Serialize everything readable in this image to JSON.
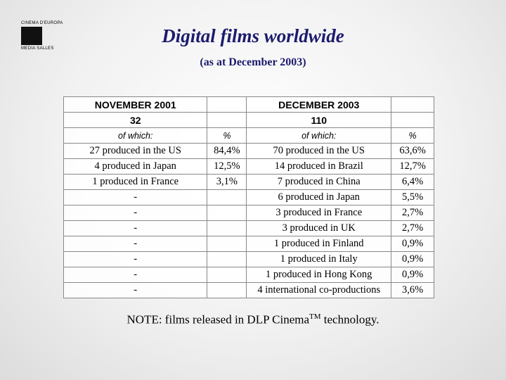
{
  "logo": {
    "top": "CINEMA D'EUROPA",
    "bottom": "MEDIA SALLES"
  },
  "header": {
    "title": "Digital films worldwide",
    "subtitle": "(as at December 2003)"
  },
  "table": {
    "rows": [
      [
        "NOVEMBER 2001",
        null,
        "DECEMBER 2003",
        null
      ],
      [
        "32",
        null,
        "110",
        null
      ],
      [
        "of which:",
        "%",
        "of which:",
        "%"
      ],
      [
        "27 produced in the US",
        "84,4%",
        "70 produced in the US",
        "63,6%"
      ],
      [
        "4 produced in Japan",
        "12,5%",
        "14 produced in Brazil",
        "12,7%"
      ],
      [
        "1 produced in France",
        "3,1%",
        "7 produced in China",
        "6,4%"
      ],
      [
        "-",
        null,
        "6 produced in Japan",
        "5,5%"
      ],
      [
        "-",
        null,
        "3 produced in France",
        "2,7%"
      ],
      [
        "-",
        null,
        "3 produced in UK",
        "2,7%"
      ],
      [
        "-",
        null,
        "1 produced in Finland",
        "0,9%"
      ],
      [
        "-",
        null,
        "1 produced in Italy",
        "0,9%"
      ],
      [
        "-",
        null,
        "1 produced in Hong Kong",
        "0,9%"
      ],
      [
        "-",
        null,
        "4 international co-productions",
        "3,6%"
      ]
    ]
  },
  "note": {
    "text": "NOTE: films released in DLP Cinema",
    "superscript": "TM",
    "suffix": " technology."
  }
}
